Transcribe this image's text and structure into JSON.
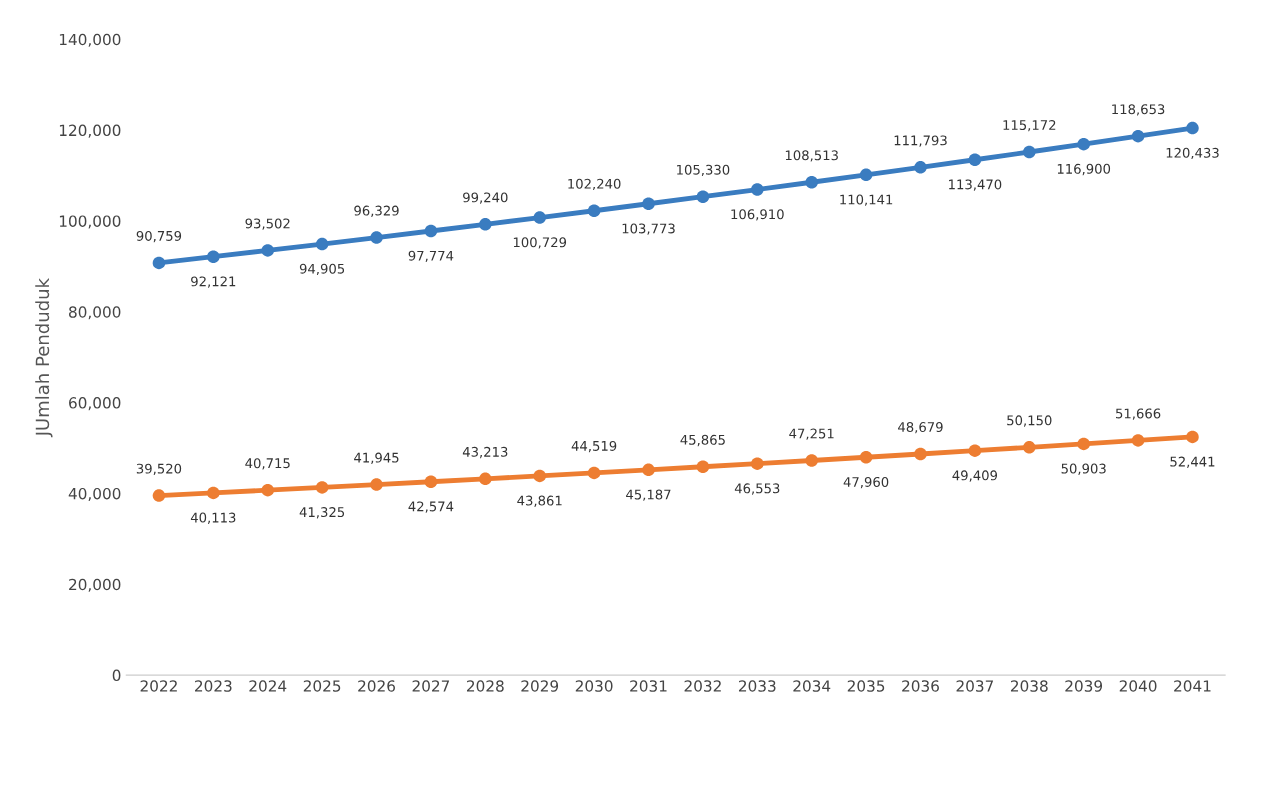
{
  "chart_data": {
    "type": "line",
    "ylabel": "JUmlah Penduduk",
    "categories": [
      "2022",
      "2023",
      "2024",
      "2025",
      "2026",
      "2027",
      "2028",
      "2029",
      "2030",
      "2031",
      "2032",
      "2033",
      "2034",
      "2035",
      "2036",
      "2037",
      "2038",
      "2039",
      "2040",
      "2041"
    ],
    "series": [
      {
        "color": "#3a7cc0",
        "values": [
          90759,
          92121,
          93502,
          94905,
          96329,
          97774,
          99240,
          100729,
          102240,
          103773,
          105330,
          106910,
          108513,
          110141,
          111793,
          113470,
          115172,
          116900,
          118653,
          120433
        ],
        "value_labels": [
          "90,759",
          "92,121",
          "93,502",
          "94,905",
          "96,329",
          "97,774",
          "99,240",
          "100,729",
          "102,240",
          "103,773",
          "105,330",
          "106,910",
          "108,513",
          "110,141",
          "111,793",
          "113,470",
          "115,172",
          "116,900",
          "118,653",
          "120,433"
        ]
      },
      {
        "color": "#ed7d31",
        "values": [
          39520,
          40113,
          40715,
          41325,
          41945,
          42574,
          43213,
          43861,
          44519,
          45187,
          45865,
          46553,
          47251,
          47960,
          48679,
          49409,
          50150,
          50903,
          51666,
          52441
        ],
        "value_labels": [
          "39,520",
          "40,113",
          "40,715",
          "41,325",
          "41,945",
          "42,574",
          "43,213",
          "43,861",
          "44,519",
          "45,187",
          "45,865",
          "46,553",
          "47,251",
          "47,960",
          "48,679",
          "49,409",
          "50,150",
          "50,903",
          "51,666",
          "52,441"
        ]
      }
    ],
    "ylim": [
      0,
      140000
    ],
    "yticks": [
      {
        "value": 0,
        "label": "0"
      },
      {
        "value": 20000,
        "label": "20,000"
      },
      {
        "value": 40000,
        "label": "40,000"
      },
      {
        "value": 60000,
        "label": "60,000"
      },
      {
        "value": 80000,
        "label": "80,000"
      },
      {
        "value": 100000,
        "label": "100,000"
      },
      {
        "value": 120000,
        "label": "120,000"
      },
      {
        "value": 140000,
        "label": "140,000"
      }
    ],
    "grid": false,
    "marker": "circle",
    "line_style": "solid"
  }
}
